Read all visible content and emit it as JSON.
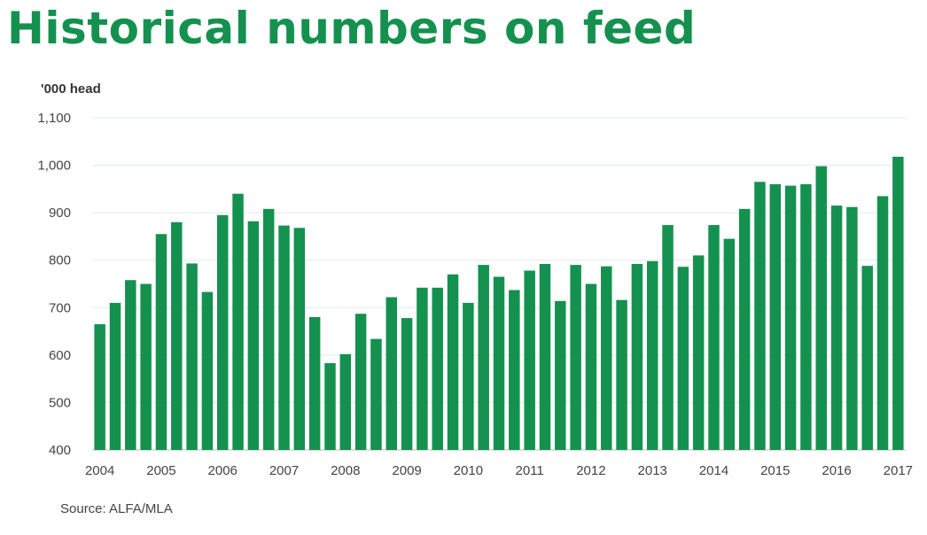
{
  "title": "Historical numbers on feed",
  "unit_label": "'000 head",
  "source": "Source: ALFA/MLA",
  "colors": {
    "bar": "#14914f",
    "title": "#14914f",
    "grid": "#d9efe2",
    "text": "#444444"
  },
  "chart_data": {
    "type": "bar",
    "title": "Historical numbers on feed",
    "xlabel": "",
    "ylabel": "'000 head",
    "ylim": [
      400,
      1100
    ],
    "yticks": [
      400,
      500,
      600,
      700,
      800,
      900,
      1000,
      1100
    ],
    "ytick_labels": [
      "400",
      "500",
      "600",
      "700",
      "800",
      "900",
      "1,000",
      "1,100"
    ],
    "xtick_labels": [
      "2004",
      "2005",
      "2006",
      "2007",
      "2008",
      "2009",
      "2010",
      "2011",
      "2012",
      "2013",
      "2014",
      "2015",
      "2016",
      "2017"
    ],
    "grid": true,
    "frequency": "quarterly",
    "values": [
      665,
      710,
      758,
      750,
      855,
      880,
      793,
      733,
      895,
      940,
      882,
      908,
      873,
      868,
      680,
      583,
      602,
      687,
      634,
      722,
      678,
      742,
      742,
      770,
      710,
      790,
      765,
      737,
      778,
      792,
      714,
      790,
      750,
      787,
      716,
      792,
      798,
      874,
      786,
      810,
      874,
      845,
      908,
      965,
      960,
      957,
      960,
      998,
      915,
      912,
      788,
      935,
      1018
    ]
  }
}
